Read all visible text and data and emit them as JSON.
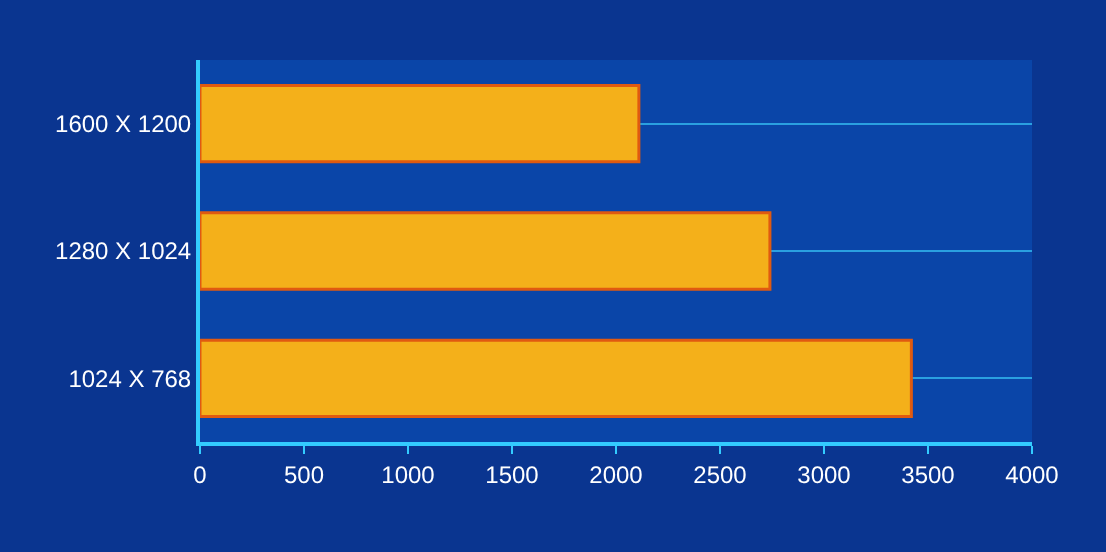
{
  "chart_data": {
    "type": "bar",
    "orientation": "horizontal",
    "categories": [
      "1600 X 1200",
      "1280 X 1024",
      "1024 X 768"
    ],
    "values": [
      2110,
      2740,
      3420
    ],
    "color": "#f4b01a",
    "xlim": [
      0,
      4000
    ],
    "xticks": [
      0,
      500,
      1000,
      1500,
      2000,
      2500,
      3000,
      3500,
      4000
    ],
    "grid": "y",
    "legend": false
  }
}
